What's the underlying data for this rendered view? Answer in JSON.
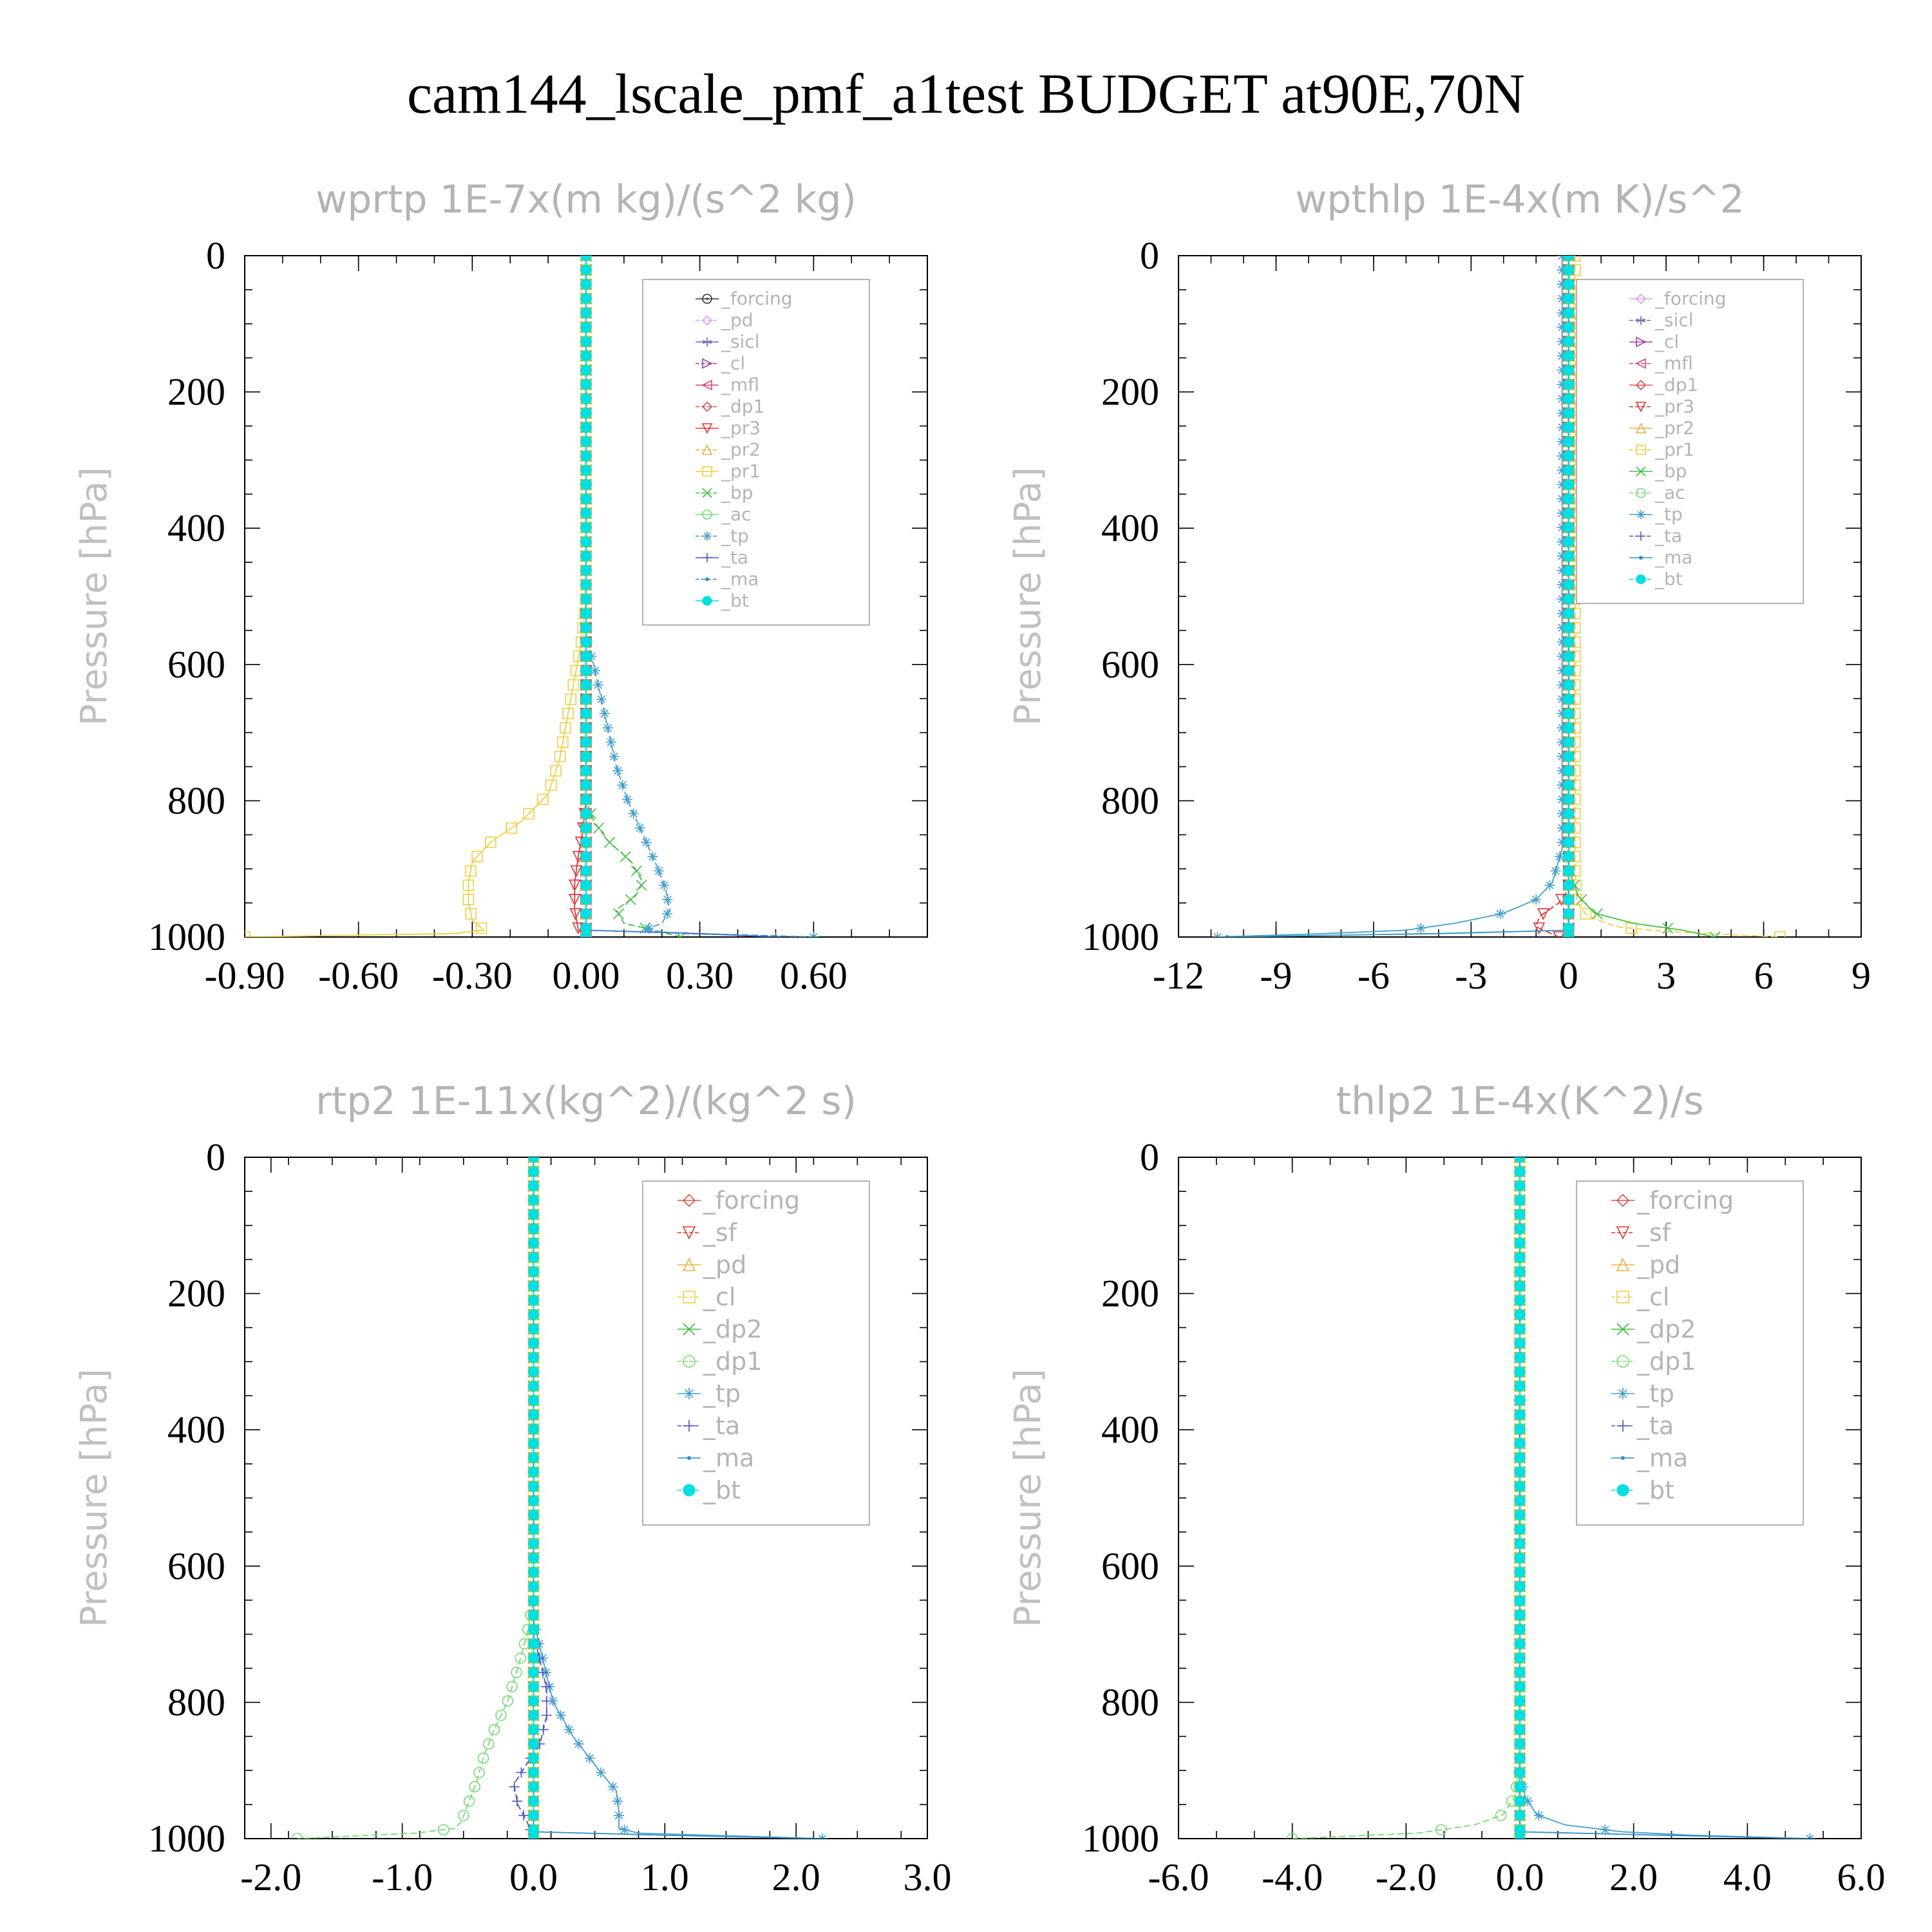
{
  "title": "cam144_lscale_pmf_a1test  BUDGET at90E,70N",
  "chart_data": [
    {
      "type": "line",
      "title": "wprtp   1E-7x(m kg)/(s^2 kg)",
      "ylabel": "Pressure [hPa]",
      "xlim": [
        -0.9,
        0.9
      ],
      "ylim": [
        1000,
        0
      ],
      "xticks": [
        "-0.90",
        "-0.60",
        "-0.30",
        "0.00",
        "0.30",
        "0.60"
      ],
      "xtick_values": [
        -0.9,
        -0.6,
        -0.3,
        0.0,
        0.3,
        0.6
      ],
      "yticks": [
        "0",
        "200",
        "400",
        "600",
        "800",
        "1000"
      ],
      "ytick_values": [
        0,
        200,
        400,
        600,
        800,
        1000
      ],
      "legend_position": "top-right",
      "legend_size": "small",
      "series": [
        {
          "name": "_forcing",
          "color": "#333333",
          "marker": "circle-dot",
          "x": [
            0,
            0
          ],
          "y": [
            0,
            1000
          ]
        },
        {
          "name": "_pd",
          "color": "#d9a0f0",
          "marker": "diamond",
          "x": [
            0,
            0
          ],
          "y": [
            0,
            1000
          ]
        },
        {
          "name": "_sicl",
          "color": "#8060c0",
          "marker": "star",
          "x": [
            0,
            0
          ],
          "y": [
            0,
            1000
          ]
        },
        {
          "name": "_cl",
          "color": "#a040a0",
          "marker": "triangle-right",
          "x": [
            0,
            0
          ],
          "y": [
            0,
            1000
          ]
        },
        {
          "name": "_mfl",
          "color": "#e0407a",
          "marker": "triangle-left",
          "x": [
            0,
            0
          ],
          "y": [
            0,
            1000
          ]
        },
        {
          "name": "_dp1",
          "color": "#e05050",
          "marker": "diamond",
          "x": [
            0,
            0
          ],
          "y": [
            0,
            1000
          ]
        },
        {
          "name": "_pr3",
          "color": "#f03030",
          "marker": "triangle-down",
          "x": [
            0,
            0,
            -0.01,
            -0.02,
            -0.03,
            -0.03,
            -0.02,
            0
          ],
          "y": [
            0,
            800,
            850,
            880,
            920,
            960,
            990,
            1000
          ]
        },
        {
          "name": "_pr2",
          "color": "#f0b040",
          "marker": "triangle-up",
          "x": [
            0,
            0
          ],
          "y": [
            0,
            1000
          ]
        },
        {
          "name": "_pr1",
          "color": "#f0d040",
          "marker": "square",
          "x": [
            0,
            0,
            -0.01,
            -0.03,
            -0.05,
            -0.07,
            -0.1,
            -0.17,
            -0.25,
            -0.3,
            -0.31,
            -0.31,
            -0.3,
            -0.27,
            -0.35,
            -0.9
          ],
          "y": [
            0,
            500,
            560,
            620,
            680,
            740,
            790,
            830,
            860,
            890,
            920,
            950,
            975,
            990,
            995,
            1000
          ]
        },
        {
          "name": "_bp",
          "color": "#40c040",
          "marker": "x",
          "x": [
            0,
            0,
            0.02,
            0.06,
            0.12,
            0.15,
            0.13,
            0.08,
            0.1,
            0.18,
            0.25
          ],
          "y": [
            0,
            800,
            830,
            860,
            890,
            920,
            940,
            960,
            980,
            990,
            1000
          ]
        },
        {
          "name": "_ac",
          "color": "#70e070",
          "marker": "circle",
          "x": [
            0,
            0
          ],
          "y": [
            0,
            1000
          ]
        },
        {
          "name": "_tp",
          "color": "#40a0d0",
          "marker": "asterisk",
          "x": [
            0,
            0,
            0.02,
            0.04,
            0.06,
            0.08,
            0.11,
            0.15,
            0.19,
            0.21,
            0.22,
            0.2,
            0.15,
            0.25,
            0.6
          ],
          "y": [
            0,
            560,
            600,
            650,
            700,
            750,
            800,
            850,
            900,
            930,
            960,
            980,
            990,
            995,
            1000
          ]
        },
        {
          "name": "_ta",
          "color": "#5050d0",
          "marker": "plus",
          "x": [
            0,
            0,
            0.3,
            0.5
          ],
          "y": [
            0,
            990,
            995,
            1000
          ]
        },
        {
          "name": "_ma",
          "color": "#3090c0",
          "marker": "dot",
          "x": [
            0,
            0,
            0.3,
            0.6
          ],
          "y": [
            0,
            990,
            995,
            1000
          ]
        },
        {
          "name": "_bt",
          "color": "#00e0e0",
          "marker": "filled-circle",
          "x": [
            0,
            0
          ],
          "y": [
            0,
            1000
          ]
        }
      ]
    },
    {
      "type": "line",
      "title": "wpthlp   1E-4x(m K)/s^2",
      "ylabel": "Pressure [hPa]",
      "xlim": [
        -12,
        9
      ],
      "ylim": [
        1000,
        0
      ],
      "xticks": [
        "-12",
        "-9",
        "-6",
        "-3",
        "0",
        "3",
        "6",
        "9"
      ],
      "xtick_values": [
        -12,
        -9,
        -6,
        -3,
        0,
        3,
        6,
        9
      ],
      "yticks": [
        "0",
        "200",
        "400",
        "600",
        "800",
        "1000"
      ],
      "ytick_values": [
        0,
        200,
        400,
        600,
        800,
        1000
      ],
      "legend_position": "top-right",
      "legend_size": "small",
      "series": [
        {
          "name": "_forcing",
          "color": "#d9a0f0",
          "marker": "diamond",
          "x": [
            0,
            0
          ],
          "y": [
            0,
            1000
          ]
        },
        {
          "name": "_sicl",
          "color": "#8060c0",
          "marker": "star",
          "x": [
            0,
            0
          ],
          "y": [
            0,
            1000
          ]
        },
        {
          "name": "_cl",
          "color": "#a040a0",
          "marker": "triangle-right",
          "x": [
            0,
            0
          ],
          "y": [
            0,
            1000
          ]
        },
        {
          "name": "_mfl",
          "color": "#e0407a",
          "marker": "triangle-left",
          "x": [
            0,
            0
          ],
          "y": [
            0,
            1000
          ]
        },
        {
          "name": "_dp1",
          "color": "#e05050",
          "marker": "diamond",
          "x": [
            0,
            0
          ],
          "y": [
            0,
            1000
          ]
        },
        {
          "name": "_pr3",
          "color": "#f03030",
          "marker": "triangle-down",
          "x": [
            0,
            0,
            -0.3,
            -0.9,
            -1.0,
            -0.3
          ],
          "y": [
            0,
            930,
            950,
            970,
            985,
            1000
          ]
        },
        {
          "name": "_pr2",
          "color": "#f0b040",
          "marker": "triangle-up",
          "x": [
            0,
            0
          ],
          "y": [
            0,
            1000
          ]
        },
        {
          "name": "_pr1",
          "color": "#f0d040",
          "marker": "square",
          "x": [
            0.2,
            0.2,
            0.25,
            0.6,
            1.5,
            3.0,
            6.5
          ],
          "y": [
            0,
            900,
            950,
            970,
            985,
            992,
            1000
          ]
        },
        {
          "name": "_bp",
          "color": "#40c040",
          "marker": "x",
          "x": [
            0,
            0,
            0.3,
            0.8,
            2.0,
            3.5,
            4.5
          ],
          "y": [
            0,
            900,
            940,
            965,
            980,
            990,
            1000
          ]
        },
        {
          "name": "_ac",
          "color": "#70e070",
          "marker": "circle",
          "x": [
            0,
            0
          ],
          "y": [
            0,
            1000
          ]
        },
        {
          "name": "_tp",
          "color": "#40a0d0",
          "marker": "asterisk",
          "x": [
            -0.2,
            -0.2,
            -0.5,
            -1.0,
            -2.0,
            -3.5,
            -5.0,
            -7.5,
            -10.8
          ],
          "y": [
            0,
            870,
            920,
            945,
            965,
            980,
            990,
            995,
            1000
          ]
        },
        {
          "name": "_ta",
          "color": "#5050d0",
          "marker": "plus",
          "x": [
            0,
            0
          ],
          "y": [
            0,
            1000
          ]
        },
        {
          "name": "_ma",
          "color": "#3090c0",
          "marker": "dot",
          "x": [
            0,
            0,
            -4,
            -10.5
          ],
          "y": [
            0,
            990,
            995,
            1000
          ]
        },
        {
          "name": "_bt",
          "color": "#00e0e0",
          "marker": "filled-circle",
          "x": [
            0,
            0
          ],
          "y": [
            0,
            1000
          ]
        }
      ]
    },
    {
      "type": "line",
      "title": "rtp2   1E-11x(kg^2)/(kg^2 s)",
      "ylabel": "Pressure [hPa]",
      "xlim": [
        -2.2,
        3.0
      ],
      "ylim": [
        1000,
        0
      ],
      "xticks": [
        "-2.0",
        "-1.0",
        "0.0",
        "1.0",
        "2.0",
        "3.0"
      ],
      "xtick_values": [
        -2.0,
        -1.0,
        0.0,
        1.0,
        2.0,
        3.0
      ],
      "yticks": [
        "0",
        "200",
        "400",
        "600",
        "800",
        "1000"
      ],
      "ytick_values": [
        0,
        200,
        400,
        600,
        800,
        1000
      ],
      "legend_position": "top-right",
      "legend_size": "large",
      "series": [
        {
          "name": "_forcing",
          "color": "#e05050",
          "marker": "diamond",
          "x": [
            0,
            0
          ],
          "y": [
            0,
            1000
          ]
        },
        {
          "name": "_sf",
          "color": "#f03030",
          "marker": "triangle-down",
          "x": [
            0,
            0
          ],
          "y": [
            0,
            1000
          ]
        },
        {
          "name": "_pd",
          "color": "#f0b040",
          "marker": "triangle-up",
          "x": [
            0,
            0
          ],
          "y": [
            0,
            1000
          ]
        },
        {
          "name": "_cl",
          "color": "#f0d040",
          "marker": "square",
          "x": [
            0,
            0
          ],
          "y": [
            0,
            1000
          ]
        },
        {
          "name": "_dp2",
          "color": "#40c040",
          "marker": "x",
          "x": [
            0,
            0
          ],
          "y": [
            0,
            1000
          ]
        },
        {
          "name": "_dp1",
          "color": "#70e070",
          "marker": "circle",
          "x": [
            0,
            0,
            -0.05,
            -0.12,
            -0.2,
            -0.3,
            -0.38,
            -0.44,
            -0.5,
            -0.55,
            -0.6,
            -0.9,
            -1.8
          ],
          "y": [
            0,
            650,
            700,
            750,
            800,
            840,
            880,
            920,
            950,
            975,
            985,
            992,
            1000
          ]
        },
        {
          "name": "_tp",
          "color": "#40a0d0",
          "marker": "asterisk",
          "x": [
            0,
            0,
            0.05,
            0.1,
            0.15,
            0.3,
            0.5,
            0.63,
            0.65,
            0.65,
            0.8,
            2.2
          ],
          "y": [
            0,
            680,
            720,
            760,
            800,
            850,
            900,
            930,
            960,
            985,
            992,
            1000
          ]
        },
        {
          "name": "_ta",
          "color": "#5050d0",
          "marker": "plus",
          "x": [
            0,
            0,
            0.05,
            0.1,
            0.1,
            0.05,
            -0.05,
            -0.15,
            -0.12,
            -0.05,
            0
          ],
          "y": [
            0,
            700,
            740,
            780,
            820,
            860,
            890,
            920,
            950,
            975,
            1000
          ]
        },
        {
          "name": "_ma",
          "color": "#3090c0",
          "marker": "dot",
          "x": [
            0,
            0,
            1.0,
            2.2
          ],
          "y": [
            0,
            990,
            995,
            1000
          ]
        },
        {
          "name": "_bt",
          "color": "#00e0e0",
          "marker": "filled-circle",
          "x": [
            0,
            0
          ],
          "y": [
            0,
            1000
          ]
        }
      ]
    },
    {
      "type": "line",
      "title": "thlp2   1E-4x(K^2)/s",
      "ylabel": "Pressure [hPa]",
      "xlim": [
        -6.0,
        6.0
      ],
      "ylim": [
        1000,
        0
      ],
      "xticks": [
        "-6.0",
        "-4.0",
        "-2.0",
        "0.0",
        "2.0",
        "4.0",
        "6.0"
      ],
      "xtick_values": [
        -6.0,
        -4.0,
        -2.0,
        0.0,
        2.0,
        4.0,
        6.0
      ],
      "yticks": [
        "0",
        "200",
        "400",
        "600",
        "800",
        "1000"
      ],
      "ytick_values": [
        0,
        200,
        400,
        600,
        800,
        1000
      ],
      "legend_position": "top-right",
      "legend_size": "large",
      "series": [
        {
          "name": "_forcing",
          "color": "#e05050",
          "marker": "diamond",
          "x": [
            0,
            0
          ],
          "y": [
            0,
            1000
          ]
        },
        {
          "name": "_sf",
          "color": "#f03030",
          "marker": "triangle-down",
          "x": [
            0,
            0
          ],
          "y": [
            0,
            1000
          ]
        },
        {
          "name": "_pd",
          "color": "#f0b040",
          "marker": "triangle-up",
          "x": [
            0,
            0
          ],
          "y": [
            0,
            1000
          ]
        },
        {
          "name": "_cl",
          "color": "#f0d040",
          "marker": "square",
          "x": [
            0,
            0
          ],
          "y": [
            0,
            1000
          ]
        },
        {
          "name": "_dp2",
          "color": "#40c040",
          "marker": "x",
          "x": [
            0,
            0
          ],
          "y": [
            0,
            1000
          ]
        },
        {
          "name": "_dp1",
          "color": "#70e070",
          "marker": "circle",
          "x": [
            0,
            0,
            -0.1,
            -0.3,
            -0.8,
            -1.8,
            -4.0
          ],
          "y": [
            0,
            900,
            940,
            965,
            980,
            992,
            1000
          ]
        },
        {
          "name": "_tp",
          "color": "#40a0d0",
          "marker": "asterisk",
          "x": [
            0,
            0,
            0.1,
            0.3,
            0.8,
            1.8,
            3.0,
            5.1
          ],
          "y": [
            0,
            900,
            940,
            965,
            980,
            990,
            995,
            1000
          ]
        },
        {
          "name": "_ta",
          "color": "#5050d0",
          "marker": "plus",
          "x": [
            0,
            0
          ],
          "y": [
            0,
            1000
          ]
        },
        {
          "name": "_ma",
          "color": "#3090c0",
          "marker": "dot",
          "x": [
            0,
            0,
            2.5,
            5.1
          ],
          "y": [
            0,
            990,
            995,
            1000
          ]
        },
        {
          "name": "_bt",
          "color": "#00e0e0",
          "marker": "filled-circle",
          "x": [
            0,
            0
          ],
          "y": [
            0,
            1000
          ]
        }
      ]
    }
  ]
}
